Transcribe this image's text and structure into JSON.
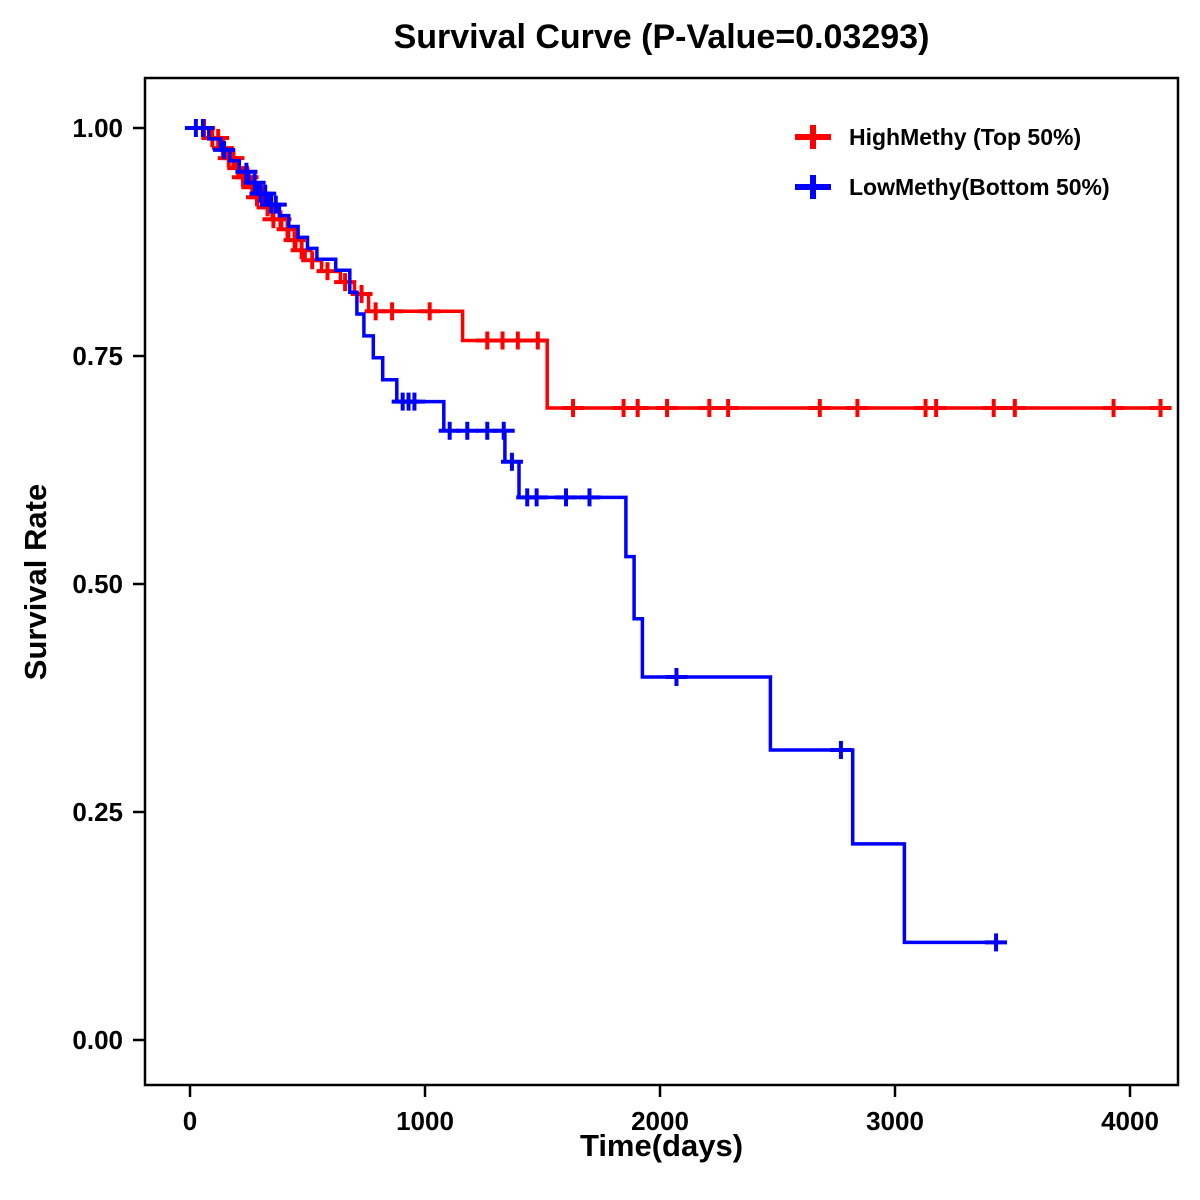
{
  "chart_data": {
    "type": "line",
    "subtype": "kaplan-meier-step-survival",
    "title": "Survival Curve (P-Value=0.03293)",
    "xlabel": "Time(days)",
    "ylabel": "Survival Rate",
    "xlim": [
      0,
      4200
    ],
    "ylim": [
      0,
      1
    ],
    "grid": false,
    "legend_position": "top-right",
    "xticks": {
      "values": [
        0,
        1000,
        2000,
        3000,
        4000
      ],
      "labels": [
        "0",
        "1000",
        "2000",
        "3000",
        "4000"
      ]
    },
    "yticks": {
      "values": [
        0,
        0.25,
        0.5,
        0.75,
        1
      ],
      "labels": [
        "0.00",
        "0.25",
        "0.50",
        "0.75",
        "1.00"
      ]
    },
    "series": [
      {
        "name": "HighMethy (Top 50%)",
        "color": "#FF0000",
        "steps": [
          [
            0,
            1.0
          ],
          [
            90,
            0.989
          ],
          [
            130,
            0.978
          ],
          [
            160,
            0.967
          ],
          [
            190,
            0.956
          ],
          [
            220,
            0.946
          ],
          [
            250,
            0.935
          ],
          [
            280,
            0.924
          ],
          [
            310,
            0.913
          ],
          [
            350,
            0.9
          ],
          [
            390,
            0.889
          ],
          [
            420,
            0.877
          ],
          [
            450,
            0.866
          ],
          [
            490,
            0.855
          ],
          [
            560,
            0.843
          ],
          [
            640,
            0.831
          ],
          [
            700,
            0.818
          ],
          [
            760,
            0.799
          ],
          [
            1160,
            0.767
          ],
          [
            1520,
            0.693
          ],
          [
            4150,
            0.693
          ]
        ],
        "censor_times": [
          60,
          95,
          120,
          140,
          165,
          185,
          205,
          225,
          245,
          265,
          285,
          305,
          330,
          355,
          385,
          415,
          445,
          475,
          520,
          585,
          660,
          730,
          790,
          860,
          1020,
          1265,
          1330,
          1395,
          1480,
          1630,
          1845,
          1905,
          2030,
          2210,
          2290,
          2680,
          2840,
          3130,
          3175,
          3420,
          3510,
          3930,
          4130
        ]
      },
      {
        "name": "LowMethy(Bottom 50%)",
        "color": "#0000FF",
        "steps": [
          [
            0,
            1.0
          ],
          [
            80,
            0.988
          ],
          [
            130,
            0.976
          ],
          [
            170,
            0.964
          ],
          [
            210,
            0.952
          ],
          [
            250,
            0.94
          ],
          [
            290,
            0.928
          ],
          [
            330,
            0.916
          ],
          [
            380,
            0.904
          ],
          [
            420,
            0.892
          ],
          [
            460,
            0.88
          ],
          [
            500,
            0.868
          ],
          [
            540,
            0.856
          ],
          [
            620,
            0.844
          ],
          [
            680,
            0.82
          ],
          [
            710,
            0.796
          ],
          [
            740,
            0.772
          ],
          [
            780,
            0.748
          ],
          [
            820,
            0.724
          ],
          [
            880,
            0.7
          ],
          [
            1080,
            0.668
          ],
          [
            1340,
            0.634
          ],
          [
            1400,
            0.595
          ],
          [
            1855,
            0.53
          ],
          [
            1890,
            0.462
          ],
          [
            1925,
            0.398
          ],
          [
            2470,
            0.318
          ],
          [
            2820,
            0.215
          ],
          [
            3040,
            0.107
          ],
          [
            3450,
            0.107
          ]
        ],
        "censor_times": [
          25,
          55,
          145,
          240,
          275,
          300,
          320,
          345,
          365,
          905,
          930,
          955,
          1105,
          1180,
          1265,
          1335,
          1370,
          1435,
          1475,
          1600,
          1700,
          2070,
          2770,
          3430
        ]
      }
    ]
  }
}
